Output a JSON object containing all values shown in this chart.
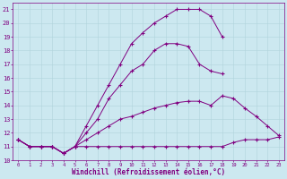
{
  "xlabel": "Windchill (Refroidissement éolien,°C)",
  "background_color": "#cce8f0",
  "line_color": "#800080",
  "xlim": [
    -0.5,
    23.5
  ],
  "ylim": [
    10,
    21.5
  ],
  "yticks": [
    10,
    11,
    12,
    13,
    14,
    15,
    16,
    17,
    18,
    19,
    20,
    21
  ],
  "xticks": [
    0,
    1,
    2,
    3,
    4,
    5,
    6,
    7,
    8,
    9,
    10,
    11,
    12,
    13,
    14,
    15,
    16,
    17,
    18,
    19,
    20,
    21,
    22,
    23
  ],
  "series": [
    {
      "x": [
        0,
        1,
        2,
        3,
        4,
        5,
        6,
        7,
        8,
        9,
        10,
        11,
        12,
        13,
        14,
        15,
        16,
        17,
        18,
        19,
        20,
        21,
        22,
        23
      ],
      "y": [
        11.5,
        11.0,
        11.0,
        11.0,
        10.5,
        11.0,
        11.0,
        11.0,
        11.0,
        11.0,
        11.0,
        11.0,
        11.0,
        11.0,
        11.0,
        11.0,
        11.0,
        11.0,
        11.0,
        11.3,
        11.5,
        11.5,
        11.5,
        11.7
      ]
    },
    {
      "x": [
        0,
        1,
        2,
        3,
        4,
        5,
        6,
        7,
        8,
        9,
        10,
        11,
        12,
        13,
        14,
        15,
        16,
        17,
        18,
        19,
        20,
        21,
        22,
        23
      ],
      "y": [
        11.5,
        11.0,
        11.0,
        11.0,
        10.5,
        11.0,
        11.5,
        12.0,
        12.5,
        13.0,
        13.2,
        13.5,
        13.8,
        14.0,
        14.2,
        14.3,
        14.3,
        14.0,
        14.7,
        14.5,
        13.8,
        13.2,
        12.5,
        11.8
      ]
    },
    {
      "x": [
        0,
        1,
        2,
        3,
        4,
        5,
        6,
        7,
        8,
        9,
        10,
        11,
        12,
        13,
        14,
        15,
        16,
        17,
        18
      ],
      "y": [
        11.5,
        11.0,
        11.0,
        11.0,
        10.5,
        11.0,
        12.0,
        13.0,
        14.5,
        15.5,
        16.5,
        17.0,
        18.0,
        18.5,
        18.5,
        18.3,
        17.0,
        16.5,
        16.3
      ]
    },
    {
      "x": [
        0,
        1,
        2,
        3,
        4,
        5,
        6,
        7,
        8,
        9,
        10,
        11,
        12,
        13,
        14,
        15,
        16,
        17,
        18
      ],
      "y": [
        11.5,
        11.0,
        11.0,
        11.0,
        10.5,
        11.0,
        12.5,
        14.0,
        15.5,
        17.0,
        18.5,
        19.3,
        20.0,
        20.5,
        21.0,
        21.0,
        21.0,
        20.5,
        19.0
      ]
    }
  ]
}
